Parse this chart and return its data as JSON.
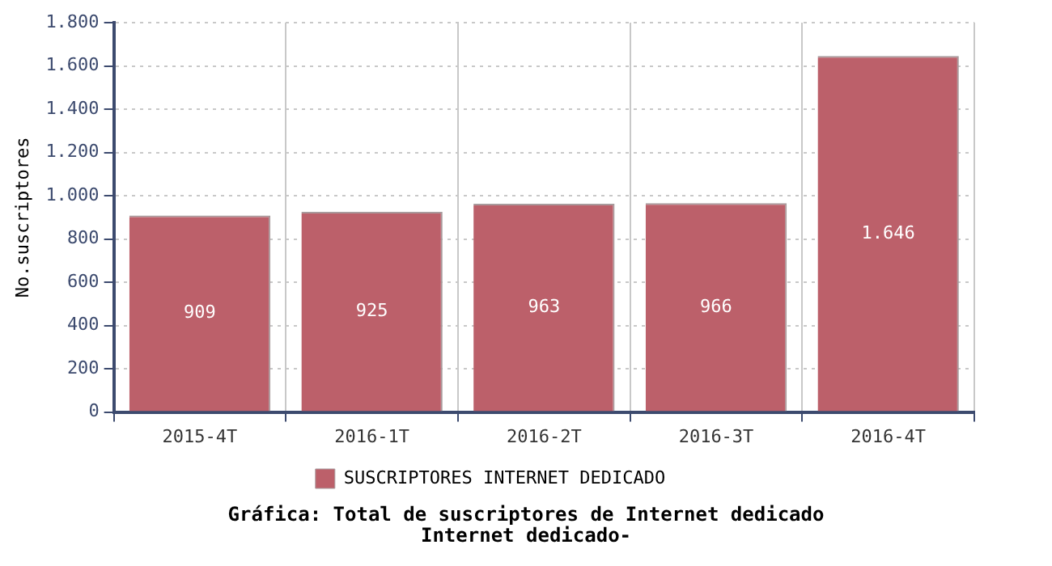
{
  "chart_data": {
    "type": "bar",
    "title": "Gráfica: Total de suscriptores de Internet dedicado",
    "subtitle": "Internet dedicado-",
    "ylabel": "No.suscriptores",
    "categories": [
      "2015-4T",
      "2016-1T",
      "2016-2T",
      "2016-3T",
      "2016-4T"
    ],
    "series": [
      {
        "name": "SUSCRIPTORES INTERNET DEDICADO",
        "color": "#bc606a",
        "values": [
          909,
          925,
          963,
          966,
          1646
        ]
      }
    ],
    "value_labels": [
      "909",
      "925",
      "963",
      "966",
      "1.646"
    ],
    "ylim": [
      0,
      1800
    ],
    "yticks": [
      {
        "value": 0,
        "label": "0"
      },
      {
        "value": 200,
        "label": "200"
      },
      {
        "value": 400,
        "label": "400"
      },
      {
        "value": 600,
        "label": "600"
      },
      {
        "value": 800,
        "label": "800"
      },
      {
        "value": 1000,
        "label": "1.000"
      },
      {
        "value": 1200,
        "label": "1.200"
      },
      {
        "value": 1400,
        "label": "1.400"
      },
      {
        "value": 1600,
        "label": "1.600"
      },
      {
        "value": 1800,
        "label": "1.800"
      }
    ],
    "grid": true,
    "legend": "bottom"
  }
}
